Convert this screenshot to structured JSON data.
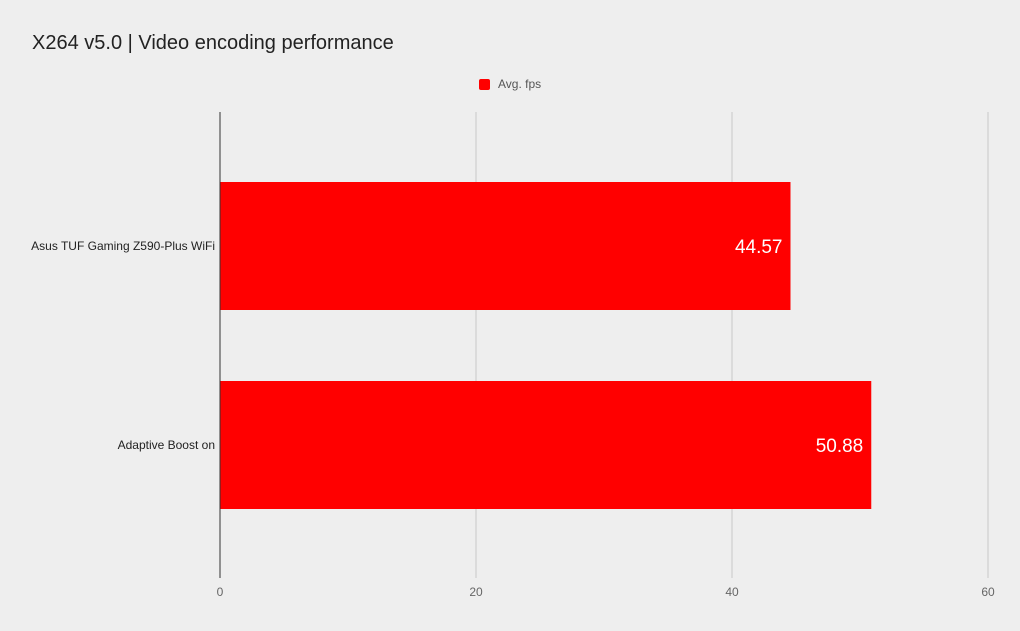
{
  "chart_data": {
    "type": "bar",
    "orientation": "horizontal",
    "title": "X264 v5.0 | Video encoding performance",
    "categories": [
      "Asus TUF Gaming Z590-Plus WiFi",
      "Adaptive Boost on"
    ],
    "series": [
      {
        "name": "Avg. fps",
        "values": [
          44.57,
          50.88
        ],
        "color": "#ff0000"
      }
    ],
    "data_labels": [
      "44.57",
      "50.88"
    ],
    "xlim": [
      0,
      60
    ],
    "x_ticks": [
      0,
      20,
      40,
      60
    ],
    "x_tick_labels": [
      "0",
      "20",
      "40",
      "60"
    ],
    "xlabel": "",
    "ylabel": "",
    "grid": true,
    "legend_position": "top-center"
  },
  "colors": {
    "background": "#eeeeee",
    "gridline": "#c8c8c8",
    "axis": "#333333",
    "bar": "#ff0000"
  }
}
